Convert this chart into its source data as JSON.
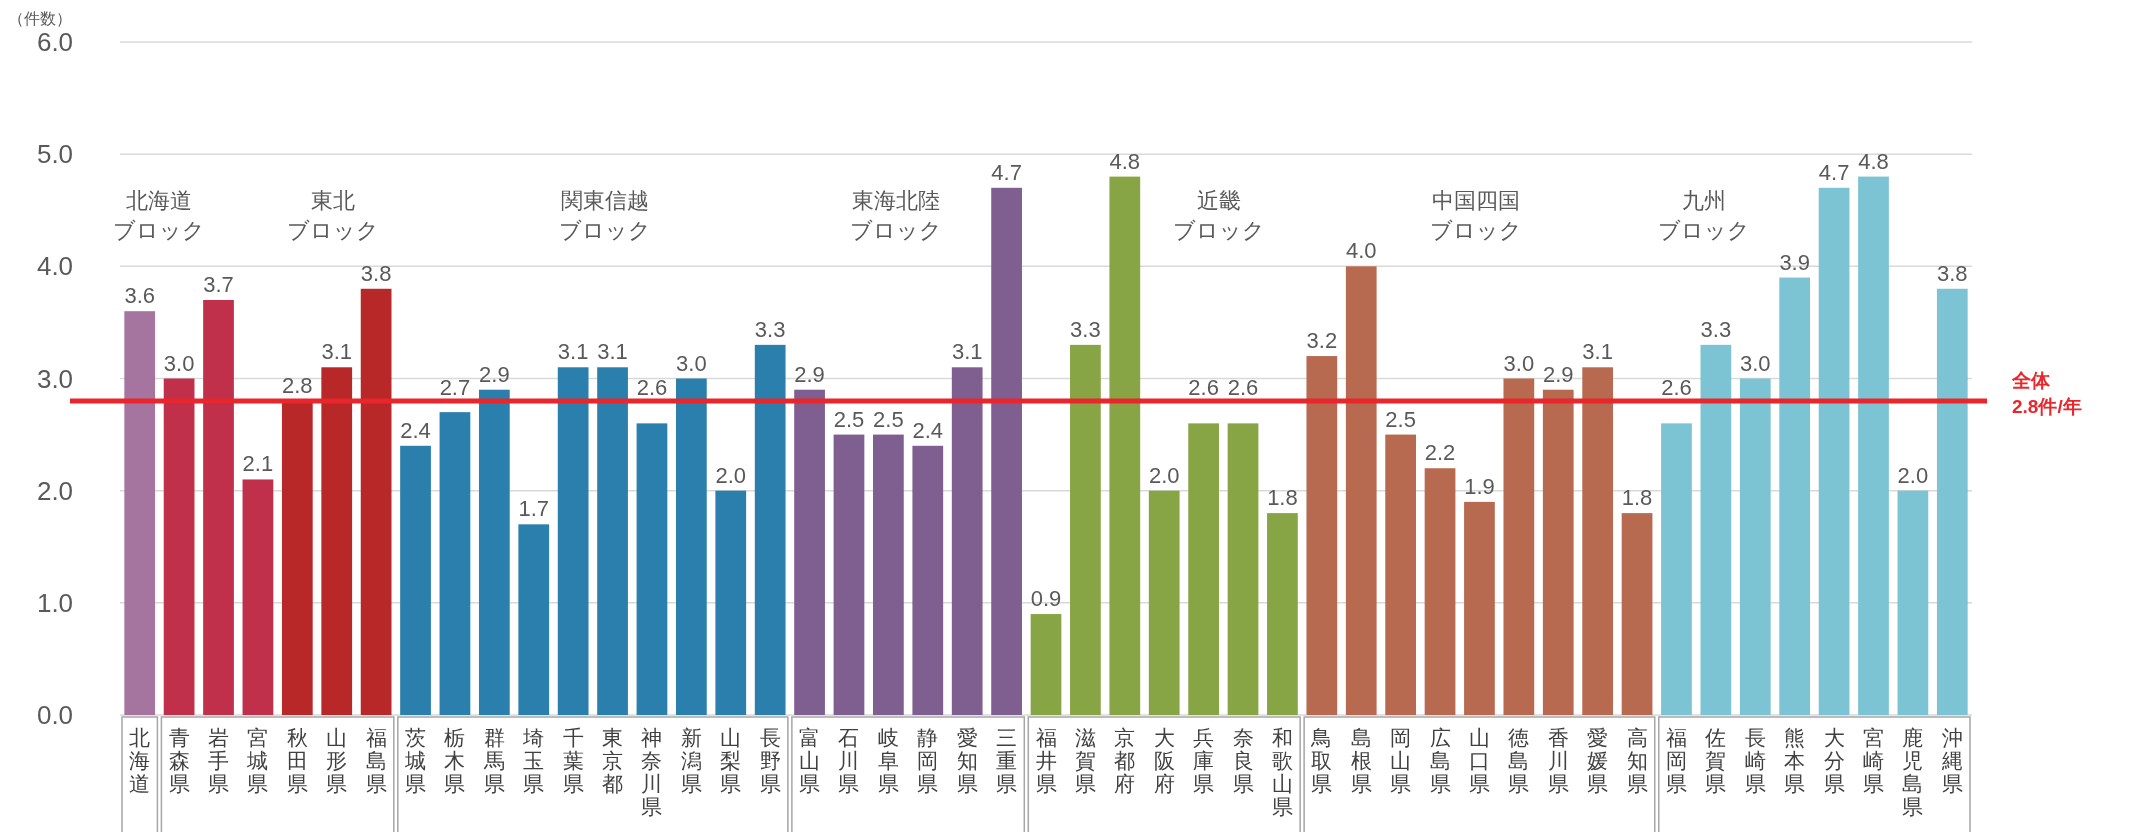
{
  "chart_data": {
    "type": "bar",
    "ylabel": "（件数）",
    "categories": [
      "北海道",
      "青森県",
      "岩手県",
      "宮城県",
      "秋田県",
      "山形県",
      "福島県",
      "茨城県",
      "栃木県",
      "群馬県",
      "埼玉県",
      "千葉県",
      "東京都",
      "神奈川県",
      "新潟県",
      "山梨県",
      "長野県",
      "富山県",
      "石川県",
      "岐阜県",
      "静岡県",
      "愛知県",
      "三重県",
      "福井県",
      "滋賀県",
      "京都府",
      "大阪府",
      "兵庫県",
      "奈良県",
      "和歌山県",
      "鳥取県",
      "島根県",
      "岡山県",
      "広島県",
      "山口県",
      "徳島県",
      "香川県",
      "愛媛県",
      "高知県",
      "福岡県",
      "佐賀県",
      "長崎県",
      "熊本県",
      "大分県",
      "宮崎県",
      "鹿児島県",
      "沖縄県"
    ],
    "values": [
      3.6,
      3.0,
      3.7,
      2.1,
      2.8,
      3.1,
      3.8,
      2.4,
      2.7,
      2.9,
      1.7,
      3.1,
      3.1,
      2.6,
      3.0,
      2.0,
      3.3,
      2.9,
      2.5,
      2.5,
      2.4,
      3.1,
      4.7,
      0.9,
      3.3,
      4.8,
      2.0,
      2.6,
      2.6,
      1.8,
      3.2,
      4.0,
      2.5,
      2.2,
      1.9,
      3.0,
      2.9,
      3.1,
      1.8,
      2.6,
      3.3,
      3.0,
      3.9,
      4.7,
      4.8,
      2.0,
      3.8
    ],
    "colors": [
      "#a5749f",
      "#c0304a",
      "#c0304a",
      "#c0304a",
      "#b82828",
      "#b82828",
      "#b82828",
      "#2a7fac",
      "#2a7fac",
      "#2a7fac",
      "#2a7fac",
      "#2a7fac",
      "#2a7fac",
      "#2a7fac",
      "#2a7fac",
      "#2a7fac",
      "#2a7fac",
      "#7f5f8f",
      "#7f5f8f",
      "#7f5f8f",
      "#7f5f8f",
      "#7f5f8f",
      "#7f5f8f",
      "#87a545",
      "#87a545",
      "#87a545",
      "#87a545",
      "#87a545",
      "#87a545",
      "#87a545",
      "#b86a50",
      "#b86a50",
      "#b86a50",
      "#b86a50",
      "#b86a50",
      "#b86a50",
      "#b86a50",
      "#b86a50",
      "#b86a50",
      "#7cc3d3",
      "#7cc3d3",
      "#7cc3d3",
      "#7cc3d3",
      "#7cc3d3",
      "#7cc3d3",
      "#7cc3d3",
      "#7cc3d3"
    ],
    "ylim": [
      0,
      6
    ],
    "yticks": [
      {
        "value": 0,
        "label": "0.0"
      },
      {
        "value": 1,
        "label": "1.0"
      },
      {
        "value": 2,
        "label": "2.0"
      },
      {
        "value": 3,
        "label": "3.0"
      },
      {
        "value": 4,
        "label": "4.0"
      },
      {
        "value": 5,
        "label": "5.0"
      },
      {
        "value": 6,
        "label": "6.0"
      }
    ],
    "grid": "y",
    "value_labels": [
      "3.6",
      "3.0",
      "3.7",
      "2.1",
      "2.8",
      "3.1",
      "3.8",
      "2.4",
      "2.7",
      "2.9",
      "1.7",
      "3.1",
      "3.1",
      "2.6",
      "3.0",
      "2.0",
      "3.3",
      "2.9",
      "2.5",
      "2.5",
      "2.4",
      "3.1",
      "4.7",
      "0.9",
      "3.3",
      "4.8",
      "2.0",
      "2.6",
      "2.6",
      "1.8",
      "3.2",
      "4.0",
      "2.5",
      "2.2",
      "1.9",
      "3.0",
      "2.9",
      "3.1",
      "1.8",
      "2.6",
      "3.3",
      "3.0",
      "3.9",
      "4.7",
      "4.8",
      "2.0",
      "3.8"
    ],
    "ref_lines": [
      {
        "axis": "y",
        "value": 2.8,
        "label": "全体\n2.8件/年",
        "color": "#e8262b"
      }
    ],
    "annotations": [
      "北海道ブロック",
      "東北ブロック",
      "関東信越ブロック",
      "東海北陸ブロック",
      "近畿ブロック",
      "中国四国ブロック",
      "九州ブロック"
    ]
  }
}
